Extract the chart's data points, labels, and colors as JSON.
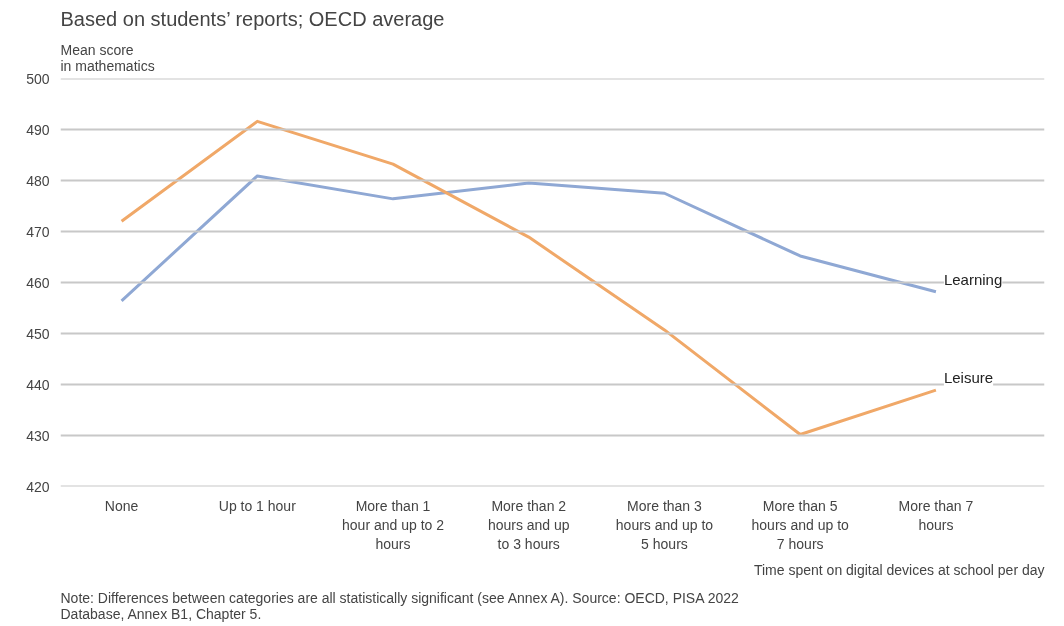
{
  "chart_data": {
    "type": "line",
    "title": "Based on students’ reports; OECD average",
    "ylabel": "Mean score\nin mathematics",
    "xlabel": "Time spent on digital devices at school per day",
    "categories": [
      "None",
      "Up to 1 hour",
      "More than 1\nhour and up to 2\nhours",
      "More than 2\nhours and up\nto 3 hours",
      "More than 3\nhours and up to\n5 hours",
      "More than 5\nhours and up to\n7 hours",
      "More than 7\nhours"
    ],
    "series": [
      {
        "name": "Learning",
        "color": "#8fa8d4",
        "values": [
          456.4,
          480.9,
          476.4,
          479.5,
          477.5,
          465.2,
          458.2
        ]
      },
      {
        "name": "Leisure",
        "color": "#f0a868",
        "values": [
          472,
          491.6,
          483.2,
          468.9,
          450.7,
          430.2,
          438.9
        ]
      }
    ],
    "ylim": [
      420,
      500
    ],
    "yticks": [
      420,
      430,
      440,
      450,
      460,
      470,
      480,
      490,
      500
    ],
    "grid": "y",
    "marker": "none",
    "line_style": "solid",
    "annotations": [
      "Note: Differences between categories are all statistically significant (see Annex A). Source: OECD, PISA 2022\nDatabase, Annex B1, Chapter 5."
    ]
  }
}
